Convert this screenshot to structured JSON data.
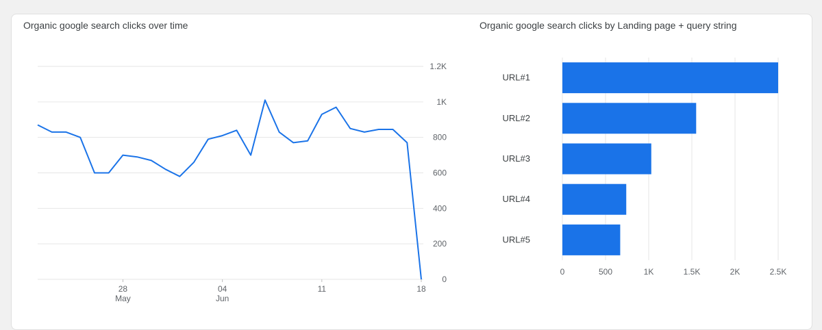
{
  "chart_data": [
    {
      "type": "line",
      "title": "Organic google search clicks over time",
      "color": "#1a73e8",
      "ylim": [
        0,
        1200
      ],
      "y_ticks": [
        0,
        200,
        400,
        600,
        800,
        1000,
        1200
      ],
      "y_tick_labels": [
        "0",
        "200",
        "400",
        "600",
        "800",
        "1K",
        "1.2K"
      ],
      "axis_position": "right",
      "grid": true,
      "x_index_range": [
        0,
        27
      ],
      "x_tick_labels": [
        {
          "index": 6,
          "day": "28",
          "month": "May"
        },
        {
          "index": 13,
          "day": "04",
          "month": "Jun"
        },
        {
          "index": 20,
          "day": "11",
          "month": ""
        },
        {
          "index": 27,
          "day": "18",
          "month": ""
        }
      ],
      "values": [
        870,
        830,
        830,
        800,
        600,
        600,
        700,
        690,
        670,
        620,
        580,
        660,
        790,
        810,
        840,
        700,
        1010,
        830,
        770,
        780,
        930,
        970,
        850,
        830,
        845,
        845,
        770,
        0
      ]
    },
    {
      "type": "bar",
      "orientation": "horizontal",
      "title": "Organic google search clicks by Landing page + query string",
      "color": "#1a73e8",
      "categories": [
        "URL#1",
        "URL#2",
        "URL#3",
        "URL#4",
        "URL#5"
      ],
      "values": [
        2500,
        1550,
        1030,
        740,
        670
      ],
      "xlim": [
        0,
        2500
      ],
      "x_ticks": [
        0,
        500,
        1000,
        1500,
        2000,
        2500
      ],
      "x_tick_labels": [
        "0",
        "500",
        "1K",
        "1.5K",
        "2K",
        "2.5K"
      ],
      "grid": true
    }
  ]
}
